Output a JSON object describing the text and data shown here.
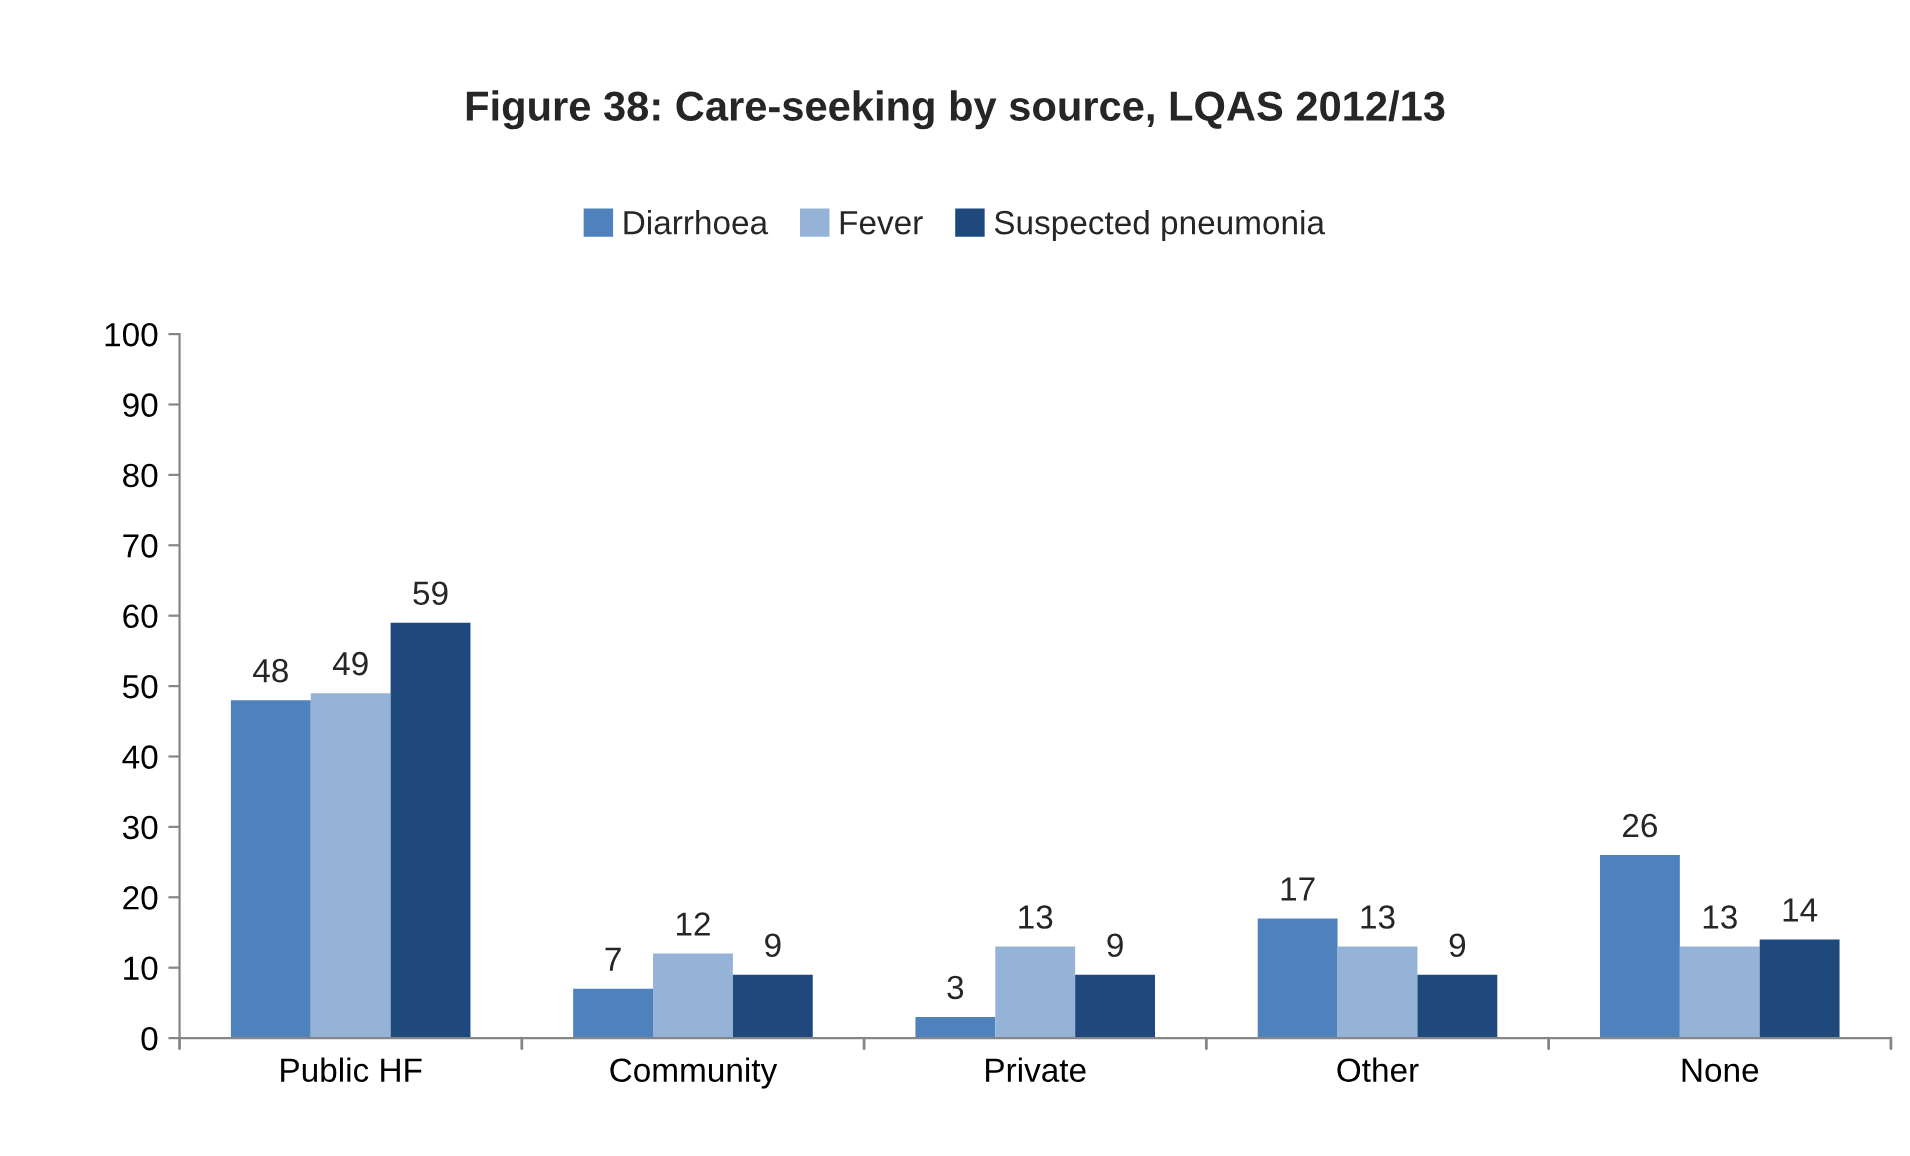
{
  "chart_data": {
    "type": "bar",
    "title": "Figure 38: Care-seeking by source, LQAS 2012/13",
    "categories": [
      "Public HF",
      "Community",
      "Private",
      "Other",
      "None"
    ],
    "series": [
      {
        "name": "Diarrhoea",
        "color": "#4f81bd",
        "values": [
          48,
          7,
          3,
          17,
          26
        ]
      },
      {
        "name": "Fever",
        "color": "#95b3d7",
        "values": [
          49,
          12,
          13,
          13,
          13
        ]
      },
      {
        "name": "Suspected pneumonia",
        "color": "#1f497d",
        "values": [
          59,
          9,
          9,
          9,
          14
        ]
      }
    ],
    "ylim": [
      0,
      100
    ],
    "yticks": [
      0,
      10,
      20,
      30,
      40,
      50,
      60,
      70,
      80,
      90,
      100
    ],
    "data_labels": true,
    "legend": "top",
    "grid": false
  }
}
